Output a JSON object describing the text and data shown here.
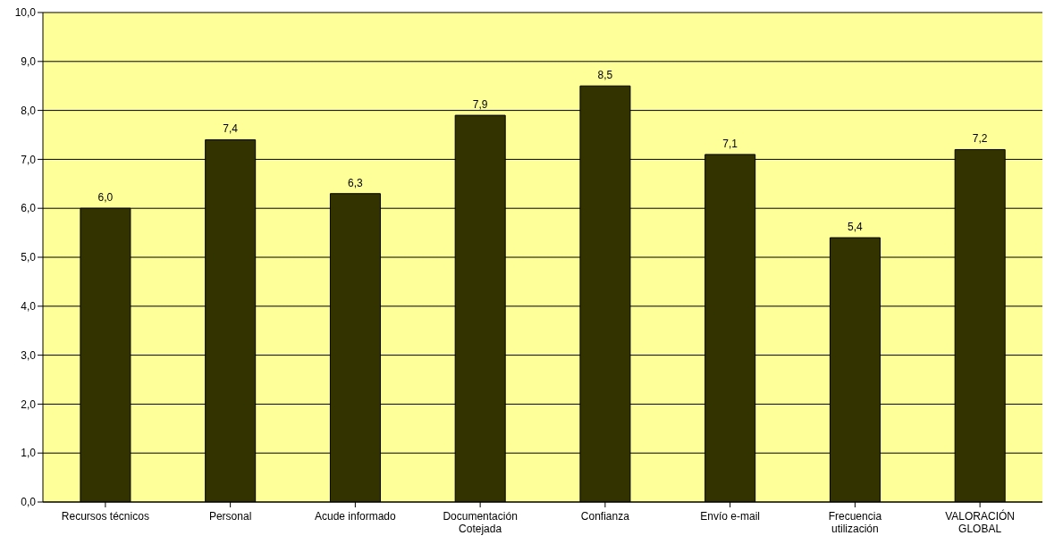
{
  "chart_data": {
    "type": "bar",
    "categories": [
      "Recursos técnicos",
      "Personal",
      "Acude informado",
      "Documentación Cotejada",
      "Confianza",
      "Envío e-mail",
      "Frecuencia utilización",
      "VALORACIÓN GLOBAL"
    ],
    "values": [
      6.0,
      7.4,
      6.3,
      7.9,
      8.5,
      7.1,
      5.4,
      7.2
    ],
    "value_labels": [
      "6,0",
      "7,4",
      "6,3",
      "7,9",
      "8,5",
      "7,1",
      "5,4",
      "7,2"
    ],
    "color": "#333300",
    "ylim": [
      0,
      10
    ],
    "yticks": [
      {
        "value": 0,
        "label": "0,0"
      },
      {
        "value": 1,
        "label": "1,0"
      },
      {
        "value": 2,
        "label": "2,0"
      },
      {
        "value": 3,
        "label": "3,0"
      },
      {
        "value": 4,
        "label": "4,0"
      },
      {
        "value": 5,
        "label": "5,0"
      },
      {
        "value": 6,
        "label": "6,0"
      },
      {
        "value": 7,
        "label": "7,0"
      },
      {
        "value": 8,
        "label": "8,0"
      },
      {
        "value": 9,
        "label": "9,0"
      },
      {
        "value": 10,
        "label": "10,0"
      }
    ],
    "grid": "y",
    "legend": false
  }
}
